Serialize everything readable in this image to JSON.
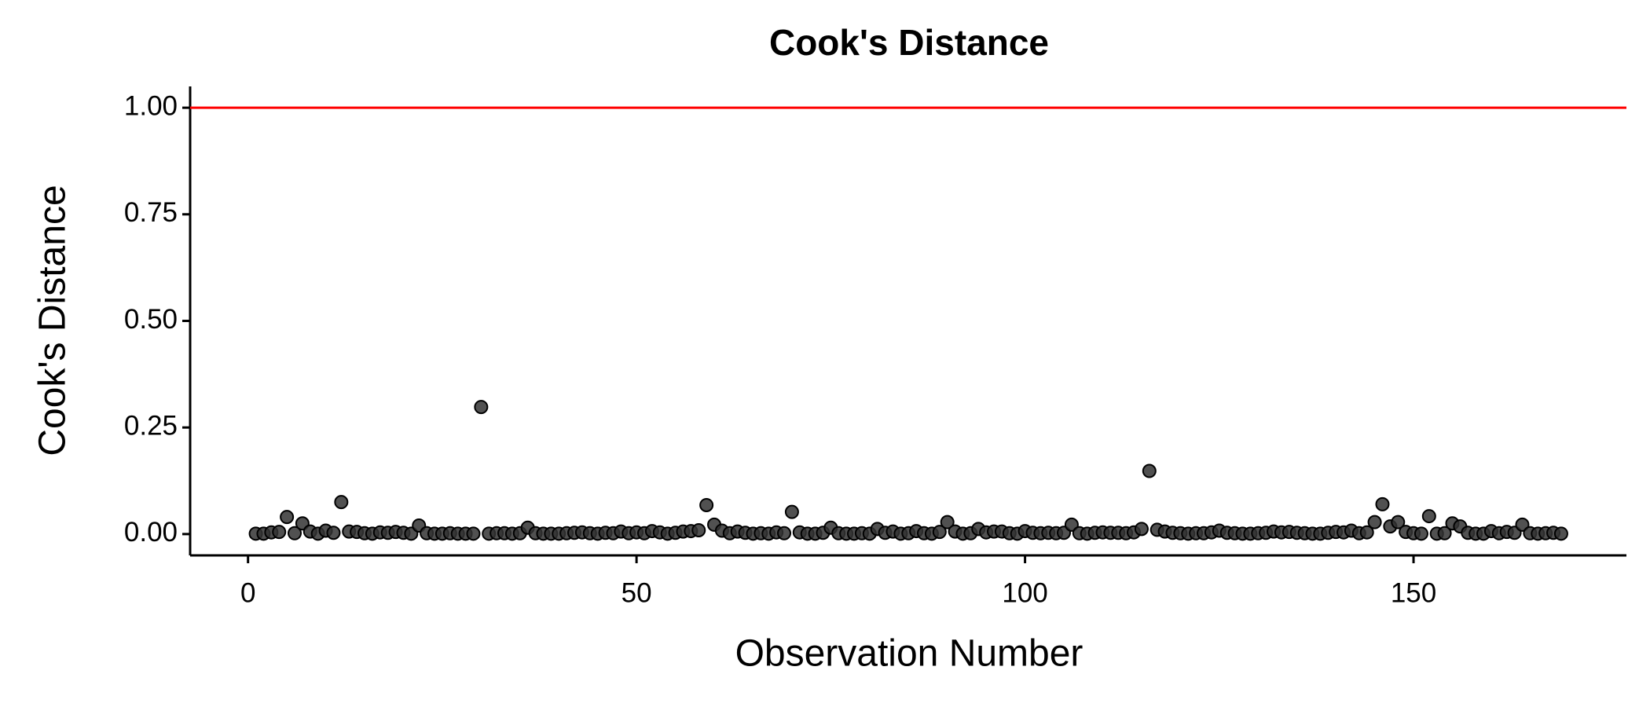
{
  "chart_data": {
    "type": "scatter",
    "title": "Cook's Distance",
    "x_label": "Observation Number",
    "y_label": "Cook's Distance",
    "x": [
      1,
      2,
      3,
      4,
      5,
      6,
      7,
      8,
      9,
      10,
      11,
      12,
      13,
      14,
      15,
      16,
      17,
      18,
      19,
      20,
      21,
      22,
      23,
      24,
      25,
      26,
      27,
      28,
      29,
      30,
      31,
      32,
      33,
      34,
      35,
      36,
      37,
      38,
      39,
      40,
      41,
      42,
      43,
      44,
      45,
      46,
      47,
      48,
      49,
      50,
      51,
      52,
      53,
      54,
      55,
      56,
      57,
      58,
      59,
      60,
      61,
      62,
      63,
      64,
      65,
      66,
      67,
      68,
      69,
      70,
      71,
      72,
      73,
      74,
      75,
      76,
      77,
      78,
      79,
      80,
      81,
      82,
      83,
      84,
      85,
      86,
      87,
      88,
      89,
      90,
      91,
      92,
      93,
      94,
      95,
      96,
      97,
      98,
      99,
      100,
      101,
      102,
      103,
      104,
      105,
      106,
      107,
      108,
      109,
      110,
      111,
      112,
      113,
      114,
      115,
      116,
      117,
      118,
      119,
      120,
      121,
      122,
      123,
      124,
      125,
      126,
      127,
      128,
      129,
      130,
      131,
      132,
      133,
      134,
      135,
      136,
      137,
      138,
      139,
      140,
      141,
      142,
      143,
      144,
      145,
      146,
      147,
      148,
      149,
      150,
      151,
      152,
      153,
      154,
      155,
      156,
      157,
      158,
      159,
      160,
      161,
      162,
      163,
      164,
      165,
      166,
      167,
      168,
      169
    ],
    "values": [
      0.001,
      0.001,
      0.004,
      0.005,
      0.04,
      0.002,
      0.025,
      0.006,
      0.001,
      0.008,
      0.003,
      0.075,
      0.006,
      0.005,
      0.002,
      0.001,
      0.004,
      0.003,
      0.005,
      0.003,
      0.001,
      0.02,
      0.002,
      0.001,
      0.001,
      0.002,
      0.001,
      0.001,
      0.001,
      0.298,
      0.001,
      0.002,
      0.002,
      0.001,
      0.002,
      0.015,
      0.002,
      0.001,
      0.001,
      0.001,
      0.002,
      0.003,
      0.004,
      0.002,
      0.001,
      0.003,
      0.002,
      0.006,
      0.002,
      0.004,
      0.002,
      0.007,
      0.004,
      0.001,
      0.003,
      0.006,
      0.007,
      0.009,
      0.068,
      0.022,
      0.008,
      0.002,
      0.006,
      0.003,
      0.001,
      0.002,
      0.001,
      0.004,
      0.002,
      0.052,
      0.004,
      0.001,
      0.001,
      0.003,
      0.015,
      0.002,
      0.001,
      0.001,
      0.002,
      0.001,
      0.012,
      0.003,
      0.006,
      0.001,
      0.002,
      0.007,
      0.002,
      0.001,
      0.005,
      0.028,
      0.006,
      0.001,
      0.002,
      0.012,
      0.004,
      0.006,
      0.006,
      0.002,
      0.001,
      0.007,
      0.003,
      0.002,
      0.003,
      0.002,
      0.003,
      0.022,
      0.002,
      0.001,
      0.003,
      0.004,
      0.003,
      0.003,
      0.002,
      0.004,
      0.012,
      0.148,
      0.01,
      0.006,
      0.003,
      0.002,
      0.001,
      0.002,
      0.002,
      0.004,
      0.008,
      0.003,
      0.002,
      0.001,
      0.001,
      0.002,
      0.003,
      0.006,
      0.004,
      0.005,
      0.003,
      0.002,
      0.001,
      0.001,
      0.003,
      0.005,
      0.004,
      0.008,
      0.002,
      0.004,
      0.028,
      0.07,
      0.018,
      0.028,
      0.005,
      0.002,
      0.001,
      0.042,
      0.001,
      0.002,
      0.025,
      0.018,
      0.003,
      0.001,
      0.001,
      0.007,
      0.002,
      0.005,
      0.003,
      0.022,
      0.002,
      0.001,
      0.002,
      0.003,
      0.001
    ],
    "color": "#333333",
    "hline": 1,
    "hline_color": "#ff0000",
    "xlim": [
      -7.45,
      177.4
    ],
    "ylim": [
      -0.05,
      1.05
    ],
    "xticks": [
      0,
      50,
      100,
      150
    ],
    "yticks": [
      {
        "value": 0,
        "label": "0.00"
      },
      {
        "value": 0.25,
        "label": "0.25"
      },
      {
        "value": 0.5,
        "label": "0.50"
      },
      {
        "value": 0.75,
        "label": "0.75"
      },
      {
        "value": 1,
        "label": "1.00"
      }
    ]
  }
}
